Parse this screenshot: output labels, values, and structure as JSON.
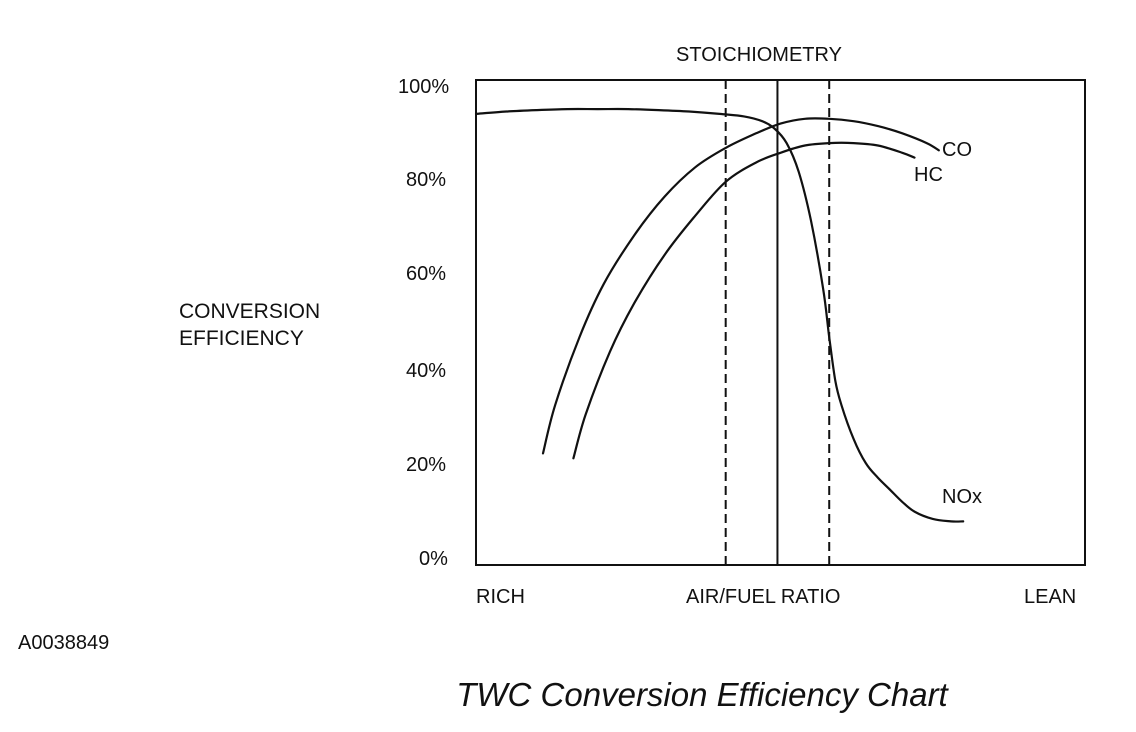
{
  "chart_data": {
    "type": "line",
    "title": "TWC Conversion Efficiency Chart",
    "top_label": "STOICHIOMETRY",
    "figure_id": "A0038849",
    "ylabel_lines": [
      "CONVERSION",
      "EFFICIENCY"
    ],
    "xlabel": "AIR/FUEL RATIO",
    "x_labels": {
      "left": "RICH",
      "center": "AIR/FUEL RATIO",
      "right": "LEAN"
    },
    "xlim": [
      0,
      100
    ],
    "ylim": [
      0,
      100
    ],
    "y_ticks": [
      {
        "value": 0,
        "label": "0%"
      },
      {
        "value": 20,
        "label": "20%"
      },
      {
        "value": 40,
        "label": "40%"
      },
      {
        "value": 60,
        "label": "60%"
      },
      {
        "value": 80,
        "label": "80%"
      },
      {
        "value": 100,
        "label": "100%"
      }
    ],
    "reference_lines": [
      {
        "name": "stoichiometry",
        "x": 49.5,
        "style": "solid"
      },
      {
        "name": "window-left",
        "x": 41,
        "style": "dashed"
      },
      {
        "name": "window-right",
        "x": 58,
        "style": "dashed"
      }
    ],
    "series": [
      {
        "name": "CO",
        "label": "CO",
        "x": [
          11,
          13,
          17,
          21,
          26,
          31,
          36,
          41,
          46,
          50,
          54,
          58,
          62,
          66,
          70,
          74,
          76
        ],
        "y": [
          23,
          33,
          47,
          58,
          68,
          76,
          82,
          86,
          89,
          91,
          92,
          92,
          91.5,
          90.5,
          89,
          87,
          85.5
        ]
      },
      {
        "name": "HC",
        "label": "HC",
        "x": [
          16,
          18,
          22,
          26,
          31,
          36,
          41,
          46,
          50,
          54,
          58,
          62,
          66,
          70,
          72
        ],
        "y": [
          22,
          31,
          44,
          54,
          64,
          72,
          79,
          83,
          85,
          86.5,
          87,
          87,
          86.5,
          85,
          84
        ]
      },
      {
        "name": "NOx",
        "label": "NOx",
        "x": [
          0,
          5,
          10,
          15,
          20,
          25,
          30,
          35,
          40,
          44,
          47,
          49,
          51,
          53,
          55,
          57,
          58,
          59,
          60,
          62,
          64,
          66,
          68,
          70,
          72,
          75,
          78,
          80
        ],
        "y": [
          93,
          93.5,
          93.8,
          94,
          94,
          94,
          93.8,
          93.5,
          93,
          92.5,
          91.5,
          90,
          87,
          81,
          71,
          57,
          47,
          38,
          33,
          26,
          21,
          18,
          15.5,
          13,
          11,
          9.5,
          9,
          9
        ]
      }
    ]
  }
}
